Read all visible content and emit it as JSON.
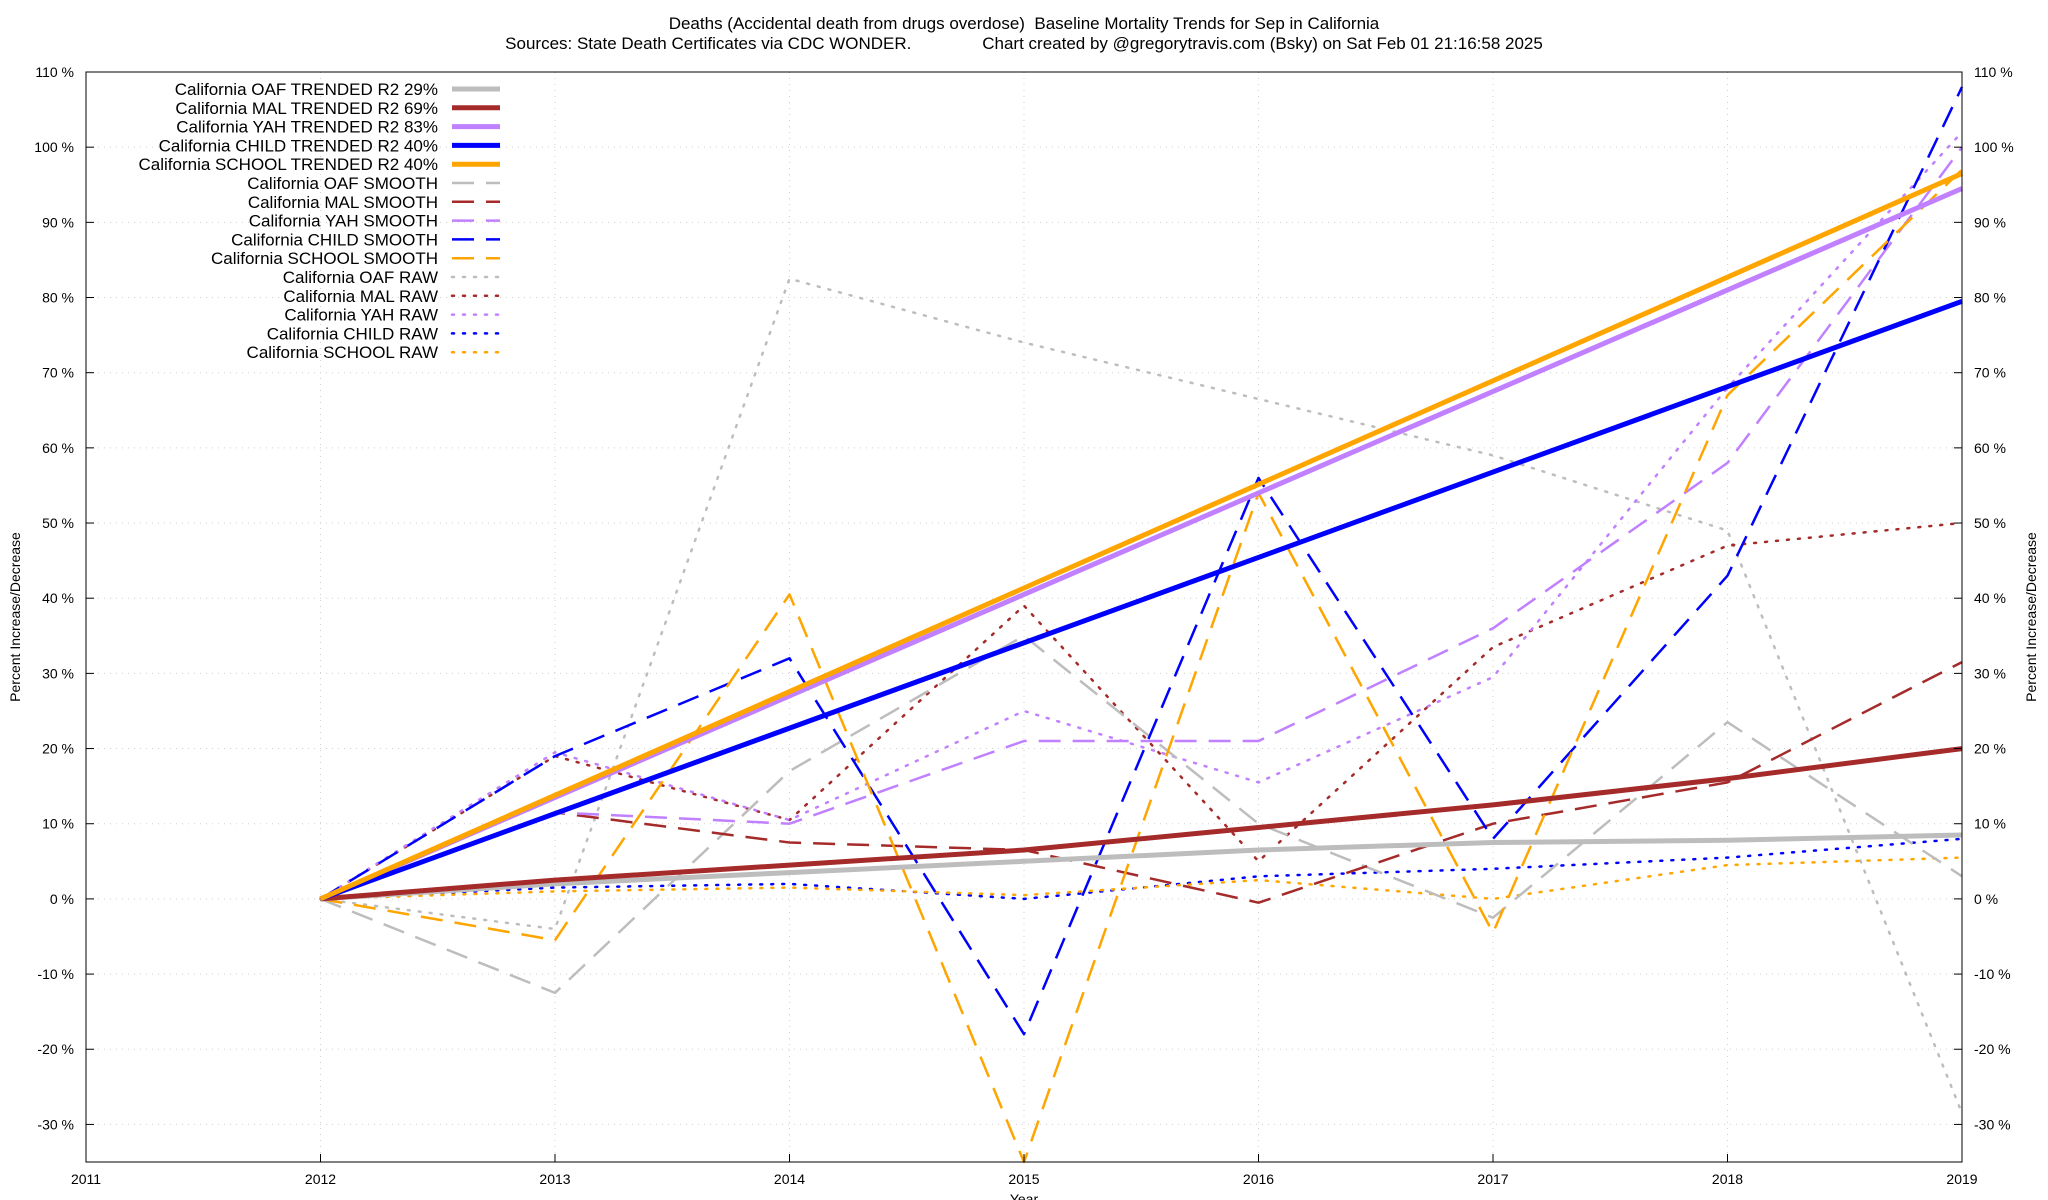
{
  "chart_data": {
    "type": "line",
    "title": "Deaths (Accidental death from drugs overdose)  Baseline Mortality Trends for Sep in California",
    "subtitle": "Sources: State Death Certificates via CDC WONDER.               Chart created by @gregorytravis.com (Bsky) on Sat Feb 01 21:16:58 2025",
    "xlabel": "Year",
    "ylabel": "Percent Increase/Decrease",
    "y2label": "Percent Increase/Decrease",
    "xlim": [
      2011,
      2019
    ],
    "ylim": [
      -35,
      110
    ],
    "x_ticks": [
      "2011",
      "2012",
      "2013",
      "2014",
      "2015",
      "2016",
      "2017",
      "2018",
      "2019"
    ],
    "y_ticks": [
      {
        "v": 110,
        "label": "110 %"
      },
      {
        "v": 100,
        "label": "100 %"
      },
      {
        "v": 90,
        "label": "90 %"
      },
      {
        "v": 80,
        "label": "80 %"
      },
      {
        "v": 70,
        "label": "70 %"
      },
      {
        "v": 60,
        "label": "60 %"
      },
      {
        "v": 50,
        "label": "50 %"
      },
      {
        "v": 40,
        "label": "40 %"
      },
      {
        "v": 30,
        "label": "30 %"
      },
      {
        "v": 20,
        "label": "20 %"
      },
      {
        "v": 10,
        "label": "10 %"
      },
      {
        "v": 0,
        "label": "0 %"
      },
      {
        "v": -10,
        "label": "-10 %"
      },
      {
        "v": -20,
        "label": "-20 %"
      },
      {
        "v": -30,
        "label": "-30 %"
      }
    ],
    "grid": true,
    "legend_position": "top-left",
    "series": [
      {
        "name": "California OAF TRENDED R2  29%",
        "color": "#bdbdbd",
        "style": "solid",
        "width": 5,
        "x": [
          2012,
          2013,
          2014,
          2015,
          2016,
          2017,
          2018,
          2019
        ],
        "y": [
          0,
          2,
          3.5,
          5,
          6.5,
          7.5,
          7.8,
          8.5
        ]
      },
      {
        "name": "California MAL TRENDED R2  69%",
        "color": "#a52a2a",
        "style": "solid",
        "width": 5,
        "x": [
          2012,
          2013,
          2014,
          2015,
          2016,
          2017,
          2018,
          2019
        ],
        "y": [
          0,
          2.5,
          4.5,
          6.5,
          9.5,
          12.5,
          16,
          20
        ]
      },
      {
        "name": "California YAH TRENDED R2  83%",
        "color": "#c080ff",
        "style": "solid",
        "width": 5,
        "x": [
          2012,
          2019
        ],
        "y": [
          0,
          94.5
        ]
      },
      {
        "name": "California CHILD TRENDED R2  40%",
        "color": "#0000ff",
        "style": "solid",
        "width": 5,
        "x": [
          2012,
          2019
        ],
        "y": [
          0,
          79.5
        ]
      },
      {
        "name": "California SCHOOL TRENDED R2  40%",
        "color": "#ffa500",
        "style": "solid",
        "width": 5,
        "x": [
          2012,
          2019
        ],
        "y": [
          0,
          96.5
        ]
      },
      {
        "name": "California OAF SMOOTH",
        "color": "#bdbdbd",
        "style": "dashed",
        "width": 2.5,
        "x": [
          2012,
          2013,
          2014,
          2015,
          2016,
          2017,
          2018,
          2019
        ],
        "y": [
          0,
          -12.5,
          17,
          35,
          10,
          -2.5,
          23.5,
          3
        ]
      },
      {
        "name": "California MAL SMOOTH",
        "color": "#a52a2a",
        "style": "dashed",
        "width": 2.5,
        "x": [
          2012,
          2013,
          2014,
          2015,
          2016,
          2017,
          2018,
          2019
        ],
        "y": [
          0,
          11.5,
          7.5,
          6.5,
          -0.5,
          10,
          15.5,
          31.5
        ]
      },
      {
        "name": "California YAH SMOOTH",
        "color": "#c080ff",
        "style": "dashed",
        "width": 2.5,
        "x": [
          2012,
          2013,
          2014,
          2015,
          2016,
          2017,
          2018,
          2019
        ],
        "y": [
          0,
          11.5,
          10,
          21,
          21,
          36,
          58,
          100
        ]
      },
      {
        "name": "California CHILD SMOOTH",
        "color": "#0000ff",
        "style": "dashed",
        "width": 2.5,
        "x": [
          2012,
          2013,
          2014,
          2015,
          2016,
          2017,
          2018,
          2019
        ],
        "y": [
          0,
          19,
          32,
          -18,
          56,
          8,
          43,
          108
        ]
      },
      {
        "name": "California SCHOOL SMOOTH",
        "color": "#ffa500",
        "style": "dashed",
        "width": 2.5,
        "x": [
          2012,
          2013,
          2014,
          2015,
          2016,
          2017,
          2018,
          2019
        ],
        "y": [
          0,
          -5.5,
          40.5,
          -35,
          54,
          -4.5,
          67,
          97
        ]
      },
      {
        "name": "California OAF RAW",
        "color": "#bdbdbd",
        "style": "dotted",
        "width": 2.5,
        "x": [
          2012,
          2013,
          2014,
          2015,
          2016,
          2017,
          2018,
          2019
        ],
        "y": [
          0,
          -4,
          82.5,
          74,
          66.5,
          59,
          49,
          -28.5
        ]
      },
      {
        "name": "California MAL RAW",
        "color": "#a52a2a",
        "style": "dotted",
        "width": 2.5,
        "x": [
          2012,
          2013,
          2014,
          2015,
          2016,
          2017,
          2018,
          2019
        ],
        "y": [
          0,
          19,
          10.5,
          39,
          5,
          33.5,
          47,
          50
        ]
      },
      {
        "name": "California YAH RAW",
        "color": "#c080ff",
        "style": "dotted",
        "width": 2.5,
        "x": [
          2012,
          2013,
          2014,
          2015,
          2016,
          2017,
          2018,
          2019
        ],
        "y": [
          0,
          19.5,
          10.5,
          25,
          15.5,
          29.5,
          68,
          102
        ]
      },
      {
        "name": "California CHILD RAW",
        "color": "#0000ff",
        "style": "dotted",
        "width": 2.5,
        "x": [
          2012,
          2013,
          2014,
          2015,
          2016,
          2017,
          2018,
          2019
        ],
        "y": [
          0,
          1.5,
          2,
          0,
          3,
          4,
          5.5,
          8
        ]
      },
      {
        "name": "California SCHOOL RAW",
        "color": "#ffa500",
        "style": "dotted",
        "width": 2.5,
        "x": [
          2012,
          2013,
          2014,
          2015,
          2016,
          2017,
          2018,
          2019
        ],
        "y": [
          0,
          1,
          1.5,
          0.5,
          2.5,
          0,
          4.5,
          5.5
        ]
      }
    ]
  }
}
